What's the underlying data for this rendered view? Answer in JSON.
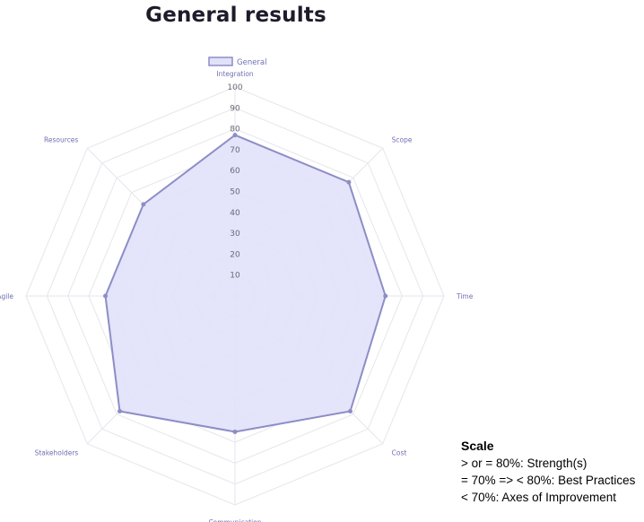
{
  "chart_data": {
    "type": "radar",
    "title": "General results",
    "axes": [
      "Integration",
      "Scope",
      "Time",
      "Cost",
      "Communication",
      "Stakeholders",
      "Agile",
      "Resources"
    ],
    "series": [
      {
        "name": "General",
        "values": [
          77,
          77,
          72,
          78,
          65,
          78,
          62,
          62
        ]
      }
    ],
    "r_range": [
      0,
      100
    ],
    "r_ticks": [
      "10",
      "20",
      "30",
      "40",
      "50",
      "60",
      "70",
      "80",
      "90",
      "100"
    ],
    "grid": true,
    "legend_position": "top-center",
    "colors": {
      "fill": "#e1e1fa",
      "stroke": "#8d8dc6",
      "grid": "#e6e6ec",
      "label": "#6f6fb5"
    }
  },
  "scale_note": {
    "heading": "Scale",
    "lines": [
      "> or = 80%: Strength(s)",
      "= 70% => < 80%: Best Practices",
      "< 70%: Axes of Improvement"
    ]
  }
}
